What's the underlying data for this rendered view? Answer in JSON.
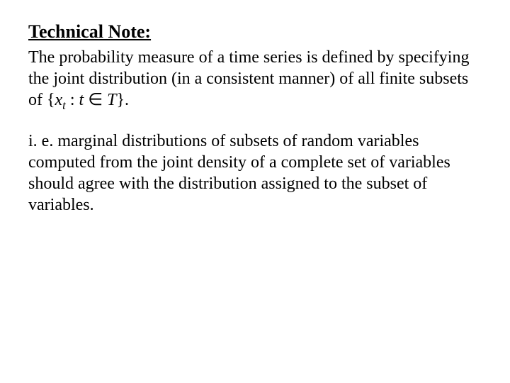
{
  "heading": "Technical Note:",
  "paragraph1_part1": "The probability measure of a time series is defined by specifying the joint distribution (in a consistent manner) of all finite subsets of {",
  "math_var": "x",
  "math_sub": "t",
  "math_colon": " : ",
  "math_t": "t",
  "math_in": " ∈ ",
  "math_T": "T",
  "paragraph1_part2": "}.",
  "paragraph2": "i. e. marginal distributions of subsets of random variables computed from the joint density of a complete set of variables should agree with the distribution assigned to the subset of variables.",
  "typography": {
    "heading_fontsize": 26,
    "body_fontsize": 24,
    "font_family": "Times New Roman",
    "text_color": "#000000",
    "background_color": "#ffffff"
  }
}
